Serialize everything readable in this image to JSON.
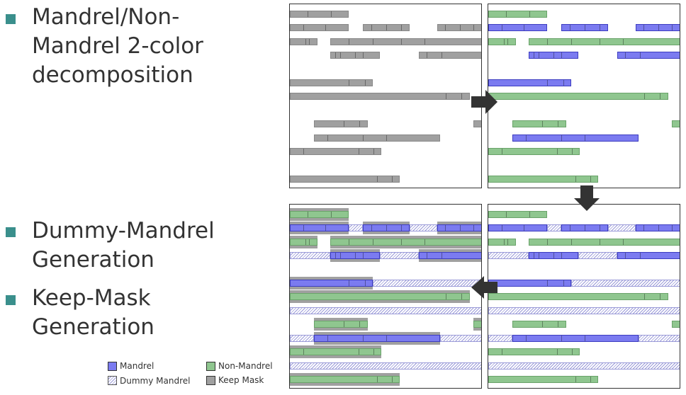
{
  "bullets": [
    {
      "lines": [
        "Mandrel/Non-",
        "Mandrel 2-color",
        "decomposition"
      ]
    },
    {
      "lines": [
        "Dummy-Mandrel",
        "Generation"
      ]
    },
    {
      "lines": [
        "Keep-Mask",
        "Generation"
      ]
    }
  ],
  "colors": {
    "bullet": "#3a8f8c",
    "mandrel": "#7b7bf0",
    "non_mandrel": "#8fc68f",
    "keep_mask": "#a0a0a0",
    "arrow": "#333333"
  },
  "panels": [
    {
      "id": "original-layout",
      "mode": "gray"
    },
    {
      "id": "two-color-decomposition",
      "mode": "color"
    },
    {
      "id": "dummy-mandrel-generation",
      "mode": "dummy"
    },
    {
      "id": "keep-mask-generation",
      "mode": "keep"
    }
  ],
  "legend": {
    "mandrel": "Mandrel",
    "non_mandrel": "Non-Mandrel",
    "dummy_mandrel": "Dummy Mandrel",
    "keep_mask": "Keep Mask"
  }
}
